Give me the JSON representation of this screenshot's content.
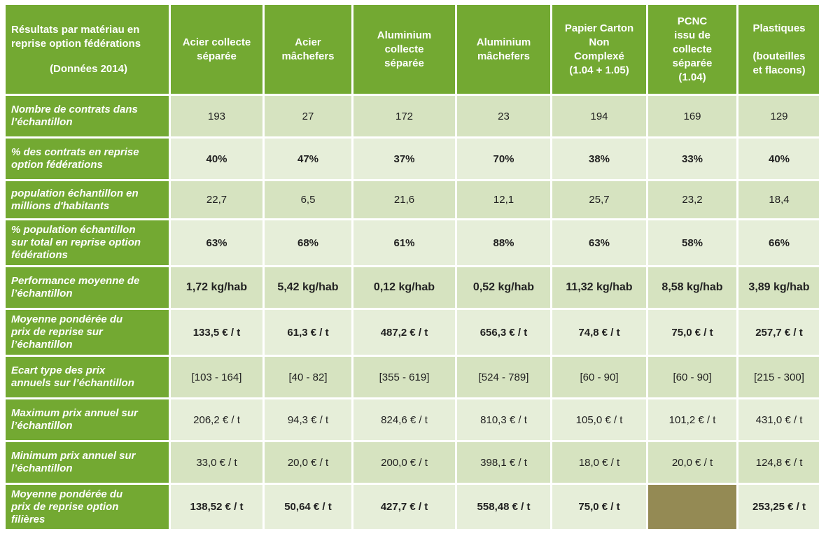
{
  "header": {
    "corner_line1": "Résultats par matériau en",
    "corner_line2": "reprise option fédérations",
    "corner_year": "(Données 2014)",
    "columns": [
      {
        "lines": [
          "Acier collecte",
          "séparée"
        ]
      },
      {
        "lines": [
          "Acier",
          "mâchefers"
        ]
      },
      {
        "lines": [
          "Aluminium",
          "collecte",
          "séparée"
        ]
      },
      {
        "lines": [
          "Aluminium",
          "mâchefers"
        ]
      },
      {
        "lines": [
          "Papier Carton",
          "Non",
          "Complexé",
          "(1.04 + 1.05)"
        ]
      },
      {
        "lines": [
          "PCNC",
          "issu de",
          "collecte",
          "séparée",
          "(1.04)"
        ]
      },
      {
        "lines": [
          "Plastiques",
          "(bouteilles",
          "et flacons)"
        ]
      }
    ]
  },
  "rows": [
    {
      "label_lines": [
        "Nombre de contrats dans",
        "l’échantillon"
      ],
      "values": [
        "193",
        "27",
        "172",
        "23",
        "194",
        "169",
        "129"
      ]
    },
    {
      "label_lines": [
        "% des contrats en reprise",
        "option fédérations"
      ],
      "values": [
        "40%",
        "47%",
        "37%",
        "70%",
        "38%",
        "33%",
        "40%"
      ]
    },
    {
      "label_lines": [
        "population échantillon en",
        "millions d'habitants"
      ],
      "values": [
        "22,7",
        "6,5",
        "21,6",
        "12,1",
        "25,7",
        "23,2",
        "18,4"
      ]
    },
    {
      "label_lines": [
        "% population échantillon",
        "sur total en reprise option",
        "fédérations"
      ],
      "values": [
        "63%",
        "68%",
        "61%",
        "88%",
        "63%",
        "58%",
        "66%"
      ]
    },
    {
      "label_lines": [
        "Performance moyenne de",
        "l’échantillon"
      ],
      "values": [
        "1,72 kg/hab",
        "5,42 kg/hab",
        "0,12 kg/hab",
        "0,52 kg/hab",
        "11,32 kg/hab",
        "8,58 kg/hab",
        "3,89 kg/hab"
      ]
    },
    {
      "label_lines": [
        "Moyenne pondérée du",
        "prix de reprise sur",
        "l’échantillon"
      ],
      "values": [
        "133,5 € / t",
        "61,3 € / t",
        "487,2 € / t",
        "656,3 € / t",
        "74,8 € / t",
        "75,0 € / t",
        "257,7 € / t"
      ]
    },
    {
      "label_lines": [
        "Ecart type des prix",
        "annuels sur l’échantillon"
      ],
      "values": [
        "[103 - 164]",
        "[40 - 82]",
        "[355 - 619]",
        "[524 - 789]",
        "[60 - 90]",
        "[60 - 90]",
        "[215 - 300]"
      ]
    },
    {
      "label_lines": [
        "Maximum  prix annuel sur",
        "l’échantillon"
      ],
      "values": [
        "206,2 € / t",
        "94,3 € / t",
        "824,6 € / t",
        "810,3 € / t",
        "105,0 € / t",
        "101,2 € / t",
        "431,0 € / t"
      ]
    },
    {
      "label_lines": [
        "Minimum  prix annuel sur",
        "l’échantillon"
      ],
      "values": [
        "33,0 € / t",
        "20,0 € / t",
        "200,0 € / t",
        "398,1 € / t",
        "18,0 € / t",
        "20,0 € / t",
        "124,8 € / t"
      ]
    },
    {
      "label_lines": [
        "Moyenne pondérée du",
        "prix de reprise option",
        "filières"
      ],
      "values": [
        "138,52 € / t",
        "50,64 € / t",
        "427,7 € / t",
        "558,48 € / t",
        "75,0 € / t",
        "",
        "253,25 € / t"
      ]
    }
  ],
  "colors": {
    "header_green": "#73a932",
    "row_dark": "#d6e3c0",
    "row_light": "#e6eed9",
    "empty_cell": "#948a54"
  }
}
